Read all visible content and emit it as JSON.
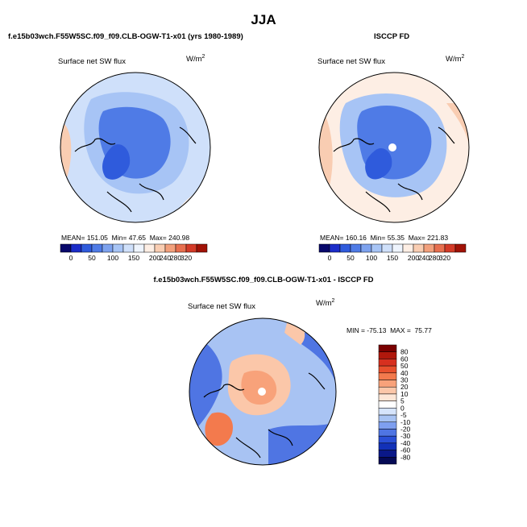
{
  "page": {
    "season": "JJA",
    "left_panel_title": "f.e15b03wch.F55W5SC.f09_f09.CLB-OGW-T1-x01 (yrs 1980-1989)",
    "right_panel_title": "ISCCP FD",
    "diff_panel_title": "f.e15b03wch.F55W5SC.f09_f09.CLB-OGW-T1-x01 - ISCCP FD"
  },
  "chart_data": [
    {
      "type": "heatmap",
      "projection": "north-polar-stereographic",
      "title": "Surface net SW flux",
      "units": "W/m",
      "units_exp": "2",
      "stats": {
        "mean": "151.05",
        "min": "47.65",
        "max": "240.98"
      },
      "stats_labels": {
        "mean": "MEAN=",
        "min": "Min=",
        "max": "Max="
      },
      "colorbar_ticks": [
        "0",
        "50",
        "100",
        "150",
        "200",
        "240",
        "280",
        "320"
      ],
      "colorbar_colors": [
        "#08086b",
        "#1b2cc8",
        "#2f5bdc",
        "#4f7be6",
        "#7da2ee",
        "#a7c4f5",
        "#cfe0fa",
        "#eef4fd",
        "#fdeee4",
        "#f9cdb2",
        "#f2a07c",
        "#e76f4f",
        "#d33a27",
        "#a11206"
      ]
    },
    {
      "type": "heatmap",
      "projection": "north-polar-stereographic",
      "title": "Surface net SW flux",
      "units": "W/m",
      "units_exp": "2",
      "stats": {
        "mean": "160.16",
        "min": "55.35",
        "max": "221.83"
      },
      "stats_labels": {
        "mean": "MEAN=",
        "min": "Min=",
        "max": "Max="
      },
      "colorbar_ticks": [
        "0",
        "50",
        "100",
        "150",
        "200",
        "240",
        "280",
        "320"
      ],
      "colorbar_colors": [
        "#08086b",
        "#1b2cc8",
        "#2f5bdc",
        "#4f7be6",
        "#7da2ee",
        "#a7c4f5",
        "#cfe0fa",
        "#eef4fd",
        "#fdeee4",
        "#f9cdb2",
        "#f2a07c",
        "#e76f4f",
        "#d33a27",
        "#a11206"
      ]
    },
    {
      "type": "heatmap",
      "projection": "north-polar-stereographic",
      "title": "Surface net SW flux",
      "units": "W/m",
      "units_exp": "2",
      "minmax_label": "MIN = -75.13  MAX =  75.77",
      "colorbar_ticks": [
        "80",
        "60",
        "50",
        "40",
        "30",
        "20",
        "10",
        "5",
        "0",
        "-5",
        "-10",
        "-20",
        "-30",
        "-40",
        "-60",
        "-80"
      ],
      "colorbar_colors": [
        "#7a0000",
        "#b0180c",
        "#d7301f",
        "#e8502d",
        "#f37a4d",
        "#f8a27a",
        "#fbc7a9",
        "#fde6d6",
        "#ffffff",
        "#d6e4fb",
        "#a8c3f3",
        "#7e9ff0",
        "#4f75e3",
        "#2a4fd6",
        "#1231b8",
        "#0a1888",
        "#050a55"
      ]
    }
  ]
}
